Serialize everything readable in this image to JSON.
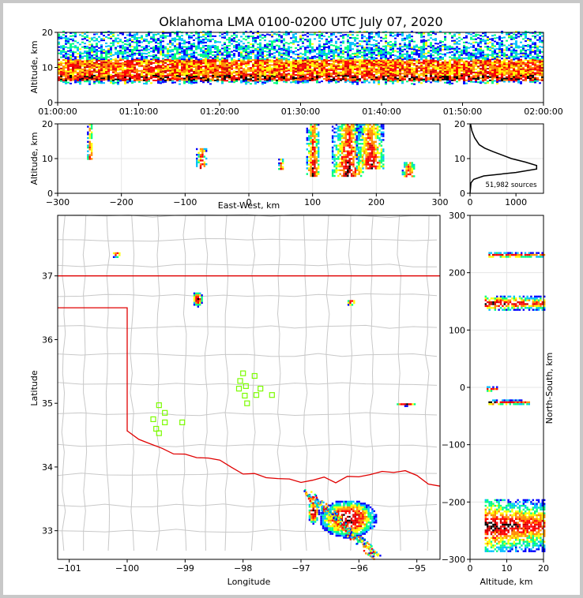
{
  "chart_data": {
    "type": "scatter",
    "title": "Oklahoma LMA 0100-0200 UTC July 07, 2020",
    "colors": {
      "density": [
        "#0000ff",
        "#00bfff",
        "#00ff7f",
        "#ffff00",
        "#ff8c00",
        "#ff0000",
        "#cc0000",
        "#ffffff",
        "#000000"
      ],
      "state_border": "#e00000",
      "county_lines": "#c8c8c8",
      "stations": "#7cfc00"
    },
    "panels": [
      {
        "id": "time-altitude",
        "ylabel": "Altitude, km",
        "xlabel": "",
        "ylim": [
          0,
          20
        ],
        "yticks": [
          "0",
          "10",
          "20"
        ],
        "xticks": [
          "01:00:00",
          "01:10:00",
          "01:20:00",
          "01:30:00",
          "01:40:00",
          "01:50:00",
          "02:00:00"
        ],
        "band_km": [
          5,
          20
        ],
        "core_km": [
          6,
          12
        ]
      },
      {
        "id": "ew-altitude",
        "ylabel": "Altitude, km",
        "xlabel": "East-West, km",
        "xlim": [
          -300,
          300
        ],
        "ylim": [
          0,
          20
        ],
        "xticks": [
          "−300",
          "−200",
          "−100",
          "0",
          "100",
          "200",
          "300"
        ],
        "yticks": [
          "0",
          "10",
          "20"
        ],
        "clusters": [
          {
            "x": -250,
            "z0": 10,
            "z1": 20,
            "w": 4
          },
          {
            "x": -75,
            "z0": 7,
            "z1": 13,
            "w": 8
          },
          {
            "x": 50,
            "z0": 7,
            "z1": 10,
            "w": 4
          },
          {
            "x": 100,
            "z0": 5,
            "z1": 20,
            "w": 10
          },
          {
            "x": 155,
            "z0": 5,
            "z1": 20,
            "w": 25
          },
          {
            "x": 190,
            "z0": 7,
            "z1": 20,
            "w": 22
          },
          {
            "x": 250,
            "z0": 5,
            "z1": 9,
            "w": 10
          }
        ]
      },
      {
        "id": "altitude-histogram",
        "xlim": [
          0,
          1600
        ],
        "ylim": [
          0,
          20
        ],
        "xticks": [
          "0",
          "1000"
        ],
        "yticks": [
          "0",
          "10",
          "20"
        ],
        "annotation": "51,982 sources",
        "profile": [
          {
            "z": 0,
            "n": 0
          },
          {
            "z": 3,
            "n": 20
          },
          {
            "z": 4,
            "n": 80
          },
          {
            "z": 5,
            "n": 300
          },
          {
            "z": 6,
            "n": 1000
          },
          {
            "z": 7,
            "n": 1450
          },
          {
            "z": 8,
            "n": 1450
          },
          {
            "z": 9,
            "n": 1200
          },
          {
            "z": 10,
            "n": 900
          },
          {
            "z": 11,
            "n": 700
          },
          {
            "z": 12,
            "n": 500
          },
          {
            "z": 13,
            "n": 320
          },
          {
            "z": 14,
            "n": 200
          },
          {
            "z": 16,
            "n": 100
          },
          {
            "z": 18,
            "n": 40
          },
          {
            "z": 20,
            "n": 10
          }
        ]
      },
      {
        "id": "plan-view",
        "xlabel": "Longitude",
        "ylabel": "Latitude",
        "xlim": [
          -101.2,
          -94.6
        ],
        "ylim": [
          32.55,
          37.95
        ],
        "xticks": [
          "−101",
          "−100",
          "−99",
          "−98",
          "−97",
          "−96",
          "−95"
        ],
        "yticks": [
          "33",
          "34",
          "35",
          "36",
          "37"
        ],
        "clusters": [
          {
            "lon": -100.2,
            "lat": 37.35,
            "w": 0.08,
            "h": 0.05
          },
          {
            "lon": -98.8,
            "lat": 36.65,
            "w": 0.09,
            "h": 0.12
          },
          {
            "lon": -96.15,
            "lat": 36.6,
            "w": 0.08,
            "h": 0.05
          },
          {
            "lon": -95.2,
            "lat": 35.0,
            "w": 0.18,
            "h": 0.03
          },
          {
            "lon": -96.8,
            "lat": 33.3,
            "w": 0.1,
            "h": 0.18
          },
          {
            "lon": -96.2,
            "lat": 33.2,
            "w": 0.5,
            "h": 0.3
          }
        ],
        "stations": [
          {
            "lon": -99.45,
            "lat": 34.97
          },
          {
            "lon": -99.35,
            "lat": 34.85
          },
          {
            "lon": -99.55,
            "lat": 34.75
          },
          {
            "lon": -99.35,
            "lat": 34.7
          },
          {
            "lon": -99.05,
            "lat": 34.7
          },
          {
            "lon": -99.5,
            "lat": 34.6
          },
          {
            "lon": -99.45,
            "lat": 34.53
          },
          {
            "lon": -98.0,
            "lat": 35.47
          },
          {
            "lon": -98.05,
            "lat": 35.35
          },
          {
            "lon": -97.8,
            "lat": 35.43
          },
          {
            "lon": -97.95,
            "lat": 35.27
          },
          {
            "lon": -98.07,
            "lat": 35.23
          },
          {
            "lon": -97.7,
            "lat": 35.23
          },
          {
            "lon": -97.97,
            "lat": 35.12
          },
          {
            "lon": -97.77,
            "lat": 35.13
          },
          {
            "lon": -97.5,
            "lat": 35.13
          },
          {
            "lon": -97.93,
            "lat": 35.0
          }
        ]
      },
      {
        "id": "altitude-ns",
        "xlabel": "Altitude, km",
        "ylabel": "North-South, km",
        "xlim": [
          0,
          20
        ],
        "ylim": [
          -300,
          300
        ],
        "xticks": [
          "0",
          "10",
          "20"
        ],
        "yticks": [
          "−300",
          "−200",
          "−100",
          "0",
          "100",
          "200",
          "300"
        ],
        "clusters": [
          {
            "z0": 5,
            "z1": 20,
            "y": 232,
            "h": 4
          },
          {
            "z0": 4,
            "z1": 20,
            "y": 148,
            "h": 12
          },
          {
            "z0": 4,
            "z1": 8,
            "y": -2,
            "h": 4
          },
          {
            "z0": 5,
            "z1": 16,
            "y": -25,
            "h": 4
          },
          {
            "z0": 4,
            "z1": 20,
            "y": -240,
            "h": 45
          }
        ]
      }
    ]
  }
}
